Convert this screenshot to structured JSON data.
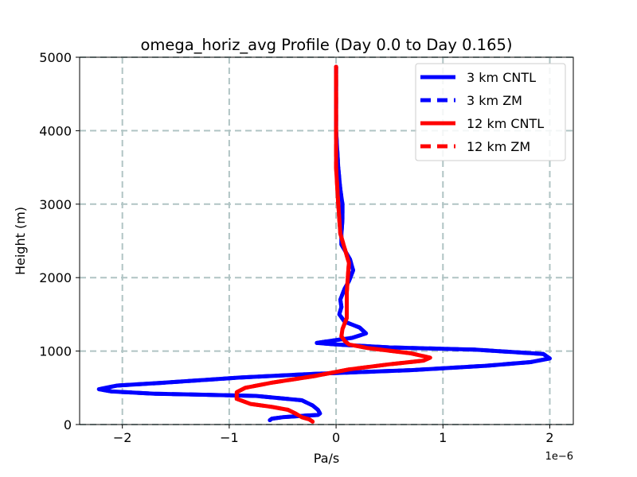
{
  "chart_data": {
    "type": "line",
    "title": "omega_horiz_avg Profile (Day 0.0 to Day 0.165)",
    "xlabel": "Pa/s",
    "ylabel": "Height (m)",
    "x_offset_label": "1e−6",
    "xlim": [
      -2.4,
      2.22
    ],
    "ylim": [
      0,
      5000
    ],
    "x_ticks": [
      -2,
      -1,
      0,
      1,
      2
    ],
    "x_tick_labels": [
      "−2",
      "−1",
      "0",
      "1",
      "2"
    ],
    "y_ticks": [
      0,
      1000,
      2000,
      3000,
      4000,
      5000
    ],
    "y_tick_labels": [
      "0",
      "1000",
      "2000",
      "3000",
      "4000",
      "5000"
    ],
    "grid": true,
    "legend_position": "top-right",
    "series": [
      {
        "name": "3 km CNTL",
        "color": "#0000ff",
        "dash": "solid",
        "points": [
          [
            -0.62,
            60
          ],
          [
            -0.6,
            80
          ],
          [
            -0.5,
            100
          ],
          [
            -0.3,
            120
          ],
          [
            -0.17,
            130
          ],
          [
            -0.15,
            150
          ],
          [
            -0.17,
            200
          ],
          [
            -0.22,
            260
          ],
          [
            -0.32,
            330
          ],
          [
            -0.75,
            390
          ],
          [
            -1.7,
            420
          ],
          [
            -2.1,
            450
          ],
          [
            -2.22,
            480
          ],
          [
            -2.05,
            530
          ],
          [
            -1.6,
            570
          ],
          [
            -0.9,
            640
          ],
          [
            -0.2,
            690
          ],
          [
            0.7,
            740
          ],
          [
            1.4,
            800
          ],
          [
            1.82,
            850
          ],
          [
            2.0,
            900
          ],
          [
            1.94,
            960
          ],
          [
            1.3,
            1020
          ],
          [
            0.5,
            1050
          ],
          [
            0.0,
            1090
          ],
          [
            -0.18,
            1110
          ],
          [
            -0.05,
            1140
          ],
          [
            0.15,
            1180
          ],
          [
            0.28,
            1240
          ],
          [
            0.22,
            1320
          ],
          [
            0.08,
            1400
          ],
          [
            0.03,
            1500
          ],
          [
            0.05,
            1600
          ],
          [
            0.04,
            1700
          ],
          [
            0.08,
            1850
          ],
          [
            0.12,
            1950
          ],
          [
            0.16,
            2100
          ],
          [
            0.13,
            2250
          ],
          [
            0.05,
            2450
          ],
          [
            0.05,
            2600
          ],
          [
            0.06,
            2800
          ],
          [
            0.06,
            3000
          ],
          [
            0.04,
            3200
          ],
          [
            0.02,
            3500
          ],
          [
            0.0,
            4000
          ],
          [
            0.0,
            4500
          ],
          [
            0.0,
            4870
          ]
        ]
      },
      {
        "name": "3 km ZM",
        "color": "#0000ff",
        "dash": "dashed",
        "points": [
          [
            -0.62,
            60
          ],
          [
            -0.6,
            80
          ],
          [
            -0.5,
            100
          ],
          [
            -0.3,
            120
          ],
          [
            -0.17,
            130
          ],
          [
            -0.15,
            150
          ],
          [
            -0.17,
            200
          ],
          [
            -0.22,
            260
          ],
          [
            -0.32,
            330
          ],
          [
            -0.75,
            390
          ],
          [
            -1.7,
            420
          ],
          [
            -2.1,
            450
          ],
          [
            -2.22,
            480
          ],
          [
            -2.05,
            530
          ],
          [
            -1.6,
            570
          ],
          [
            -0.9,
            640
          ],
          [
            -0.2,
            690
          ],
          [
            0.7,
            740
          ],
          [
            1.4,
            800
          ],
          [
            1.82,
            850
          ],
          [
            2.0,
            900
          ],
          [
            1.94,
            960
          ],
          [
            1.3,
            1020
          ],
          [
            0.5,
            1050
          ],
          [
            0.0,
            1090
          ],
          [
            -0.18,
            1110
          ],
          [
            -0.05,
            1140
          ],
          [
            0.15,
            1180
          ],
          [
            0.28,
            1240
          ],
          [
            0.22,
            1320
          ],
          [
            0.08,
            1400
          ],
          [
            0.03,
            1500
          ],
          [
            0.05,
            1600
          ],
          [
            0.04,
            1700
          ],
          [
            0.08,
            1850
          ],
          [
            0.12,
            1950
          ],
          [
            0.16,
            2100
          ],
          [
            0.13,
            2250
          ],
          [
            0.05,
            2450
          ],
          [
            0.05,
            2600
          ],
          [
            0.06,
            2800
          ],
          [
            0.06,
            3000
          ],
          [
            0.04,
            3200
          ],
          [
            0.02,
            3500
          ],
          [
            0.0,
            4000
          ],
          [
            0.0,
            4500
          ],
          [
            0.0,
            4870
          ]
        ]
      },
      {
        "name": "12 km CNTL",
        "color": "#ff0000",
        "dash": "solid",
        "points": [
          [
            -0.22,
            40
          ],
          [
            -0.25,
            70
          ],
          [
            -0.32,
            100
          ],
          [
            -0.38,
            150
          ],
          [
            -0.45,
            200
          ],
          [
            -0.6,
            240
          ],
          [
            -0.8,
            280
          ],
          [
            -0.93,
            350
          ],
          [
            -0.93,
            440
          ],
          [
            -0.85,
            500
          ],
          [
            -0.6,
            570
          ],
          [
            -0.2,
            660
          ],
          [
            0.12,
            750
          ],
          [
            0.5,
            820
          ],
          [
            0.82,
            870
          ],
          [
            0.88,
            910
          ],
          [
            0.7,
            970
          ],
          [
            0.3,
            1040
          ],
          [
            0.12,
            1090
          ],
          [
            0.08,
            1140
          ],
          [
            0.05,
            1200
          ],
          [
            0.06,
            1300
          ],
          [
            0.1,
            1450
          ],
          [
            0.1,
            1600
          ],
          [
            0.1,
            1800
          ],
          [
            0.11,
            2000
          ],
          [
            0.12,
            2200
          ],
          [
            0.08,
            2400
          ],
          [
            0.04,
            2600
          ],
          [
            0.03,
            2800
          ],
          [
            0.02,
            3000
          ],
          [
            0.0,
            3500
          ],
          [
            0.0,
            4000
          ],
          [
            0.0,
            4500
          ],
          [
            0.0,
            4870
          ]
        ]
      },
      {
        "name": "12 km ZM",
        "color": "#ff0000",
        "dash": "dashed",
        "points": [
          [
            -0.22,
            40
          ],
          [
            -0.25,
            70
          ],
          [
            -0.32,
            100
          ],
          [
            -0.38,
            150
          ],
          [
            -0.45,
            200
          ],
          [
            -0.6,
            240
          ],
          [
            -0.8,
            280
          ],
          [
            -0.93,
            350
          ],
          [
            -0.93,
            440
          ],
          [
            -0.85,
            500
          ],
          [
            -0.6,
            570
          ],
          [
            -0.2,
            660
          ],
          [
            0.12,
            750
          ],
          [
            0.5,
            820
          ],
          [
            0.82,
            870
          ],
          [
            0.88,
            910
          ],
          [
            0.7,
            970
          ],
          [
            0.3,
            1040
          ],
          [
            0.12,
            1090
          ],
          [
            0.08,
            1140
          ],
          [
            0.05,
            1200
          ],
          [
            0.06,
            1300
          ],
          [
            0.1,
            1450
          ],
          [
            0.1,
            1600
          ],
          [
            0.1,
            1800
          ],
          [
            0.11,
            2000
          ],
          [
            0.12,
            2200
          ],
          [
            0.08,
            2400
          ],
          [
            0.04,
            2600
          ],
          [
            0.03,
            2800
          ],
          [
            0.02,
            3000
          ],
          [
            0.0,
            3500
          ],
          [
            0.0,
            4000
          ],
          [
            0.0,
            4500
          ],
          [
            0.0,
            4870
          ]
        ]
      }
    ]
  }
}
